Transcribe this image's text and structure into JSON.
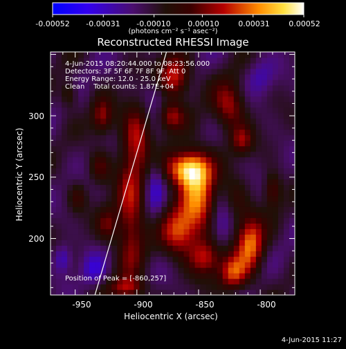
{
  "chart_data": {
    "type": "heatmap",
    "title": "Reconstructed RHESSI Image",
    "xlabel": "Heliocentric X (arcsec)",
    "ylabel": "Heliocentric Y (arcsec)",
    "xlim": [
      -970,
      -772
    ],
    "ylim": [
      154,
      352
    ],
    "x_ticks": [
      -950,
      -900,
      -850,
      -800
    ],
    "y_ticks": [
      200,
      250,
      300
    ],
    "colorbar": {
      "min": -0.00052,
      "max": 0.00052,
      "tick_values": [
        -0.00052,
        -0.00031,
        -0.0001,
        0.0001,
        0.00031,
        0.00052
      ],
      "tick_labels": [
        "-0.00052",
        "-0.00031",
        "-0.00010",
        "0.00010",
        "0.00031",
        "0.00052"
      ],
      "units": "(photons cm⁻² s⁻¹ asec⁻²)"
    },
    "annotations": [
      "4-Jun-2015 08:20:44.000 to 08:23:56.000",
      "Detectors: 3F 5F 6F 7F 8F 9F, Att 0",
      "Energy Range: 12.0 - 25.0 keV",
      "Clean    Total counts: 1.87E+04"
    ],
    "peak_label": "Position of Peak = [-860,257]",
    "peak": [
      -860,
      257
    ],
    "limb_line": [
      [
        -934,
        154
      ],
      [
        -876,
        352
      ]
    ],
    "sources": [
      {
        "x": -860,
        "y": 257,
        "sx": 12,
        "sy": 10,
        "amp": 0.00052
      },
      {
        "x": -850,
        "y": 235,
        "sx": 10,
        "sy": 22,
        "amp": 0.0004
      },
      {
        "x": -866,
        "y": 206,
        "sx": 10,
        "sy": 14,
        "amp": 0.00036
      },
      {
        "x": -845,
        "y": 185,
        "sx": 9,
        "sy": 10,
        "amp": 0.0003
      },
      {
        "x": -905,
        "y": 220,
        "sx": 8,
        "sy": 35,
        "amp": 0.00032
      },
      {
        "x": -900,
        "y": 285,
        "sx": 8,
        "sy": 18,
        "amp": 0.00028
      },
      {
        "x": -870,
        "y": 332,
        "sx": 9,
        "sy": 12,
        "amp": 0.00038
      },
      {
        "x": -872,
        "y": 300,
        "sx": 7,
        "sy": 8,
        "amp": 0.00026
      },
      {
        "x": -928,
        "y": 300,
        "sx": 6,
        "sy": 10,
        "amp": 0.00026
      },
      {
        "x": -930,
        "y": 258,
        "sx": 6,
        "sy": 9,
        "amp": 0.0002
      },
      {
        "x": -924,
        "y": 212,
        "sx": 6,
        "sy": 10,
        "amp": 0.0002
      },
      {
        "x": -908,
        "y": 160,
        "sx": 10,
        "sy": 6,
        "amp": 0.00026
      },
      {
        "x": -808,
        "y": 196,
        "sx": 8,
        "sy": 16,
        "amp": 0.00042
      },
      {
        "x": -822,
        "y": 172,
        "sx": 8,
        "sy": 10,
        "amp": 0.00036
      },
      {
        "x": -825,
        "y": 308,
        "sx": 9,
        "sy": 14,
        "amp": 0.0003
      },
      {
        "x": -815,
        "y": 280,
        "sx": 6,
        "sy": 8,
        "amp": 0.00024
      },
      {
        "x": -790,
        "y": 240,
        "sx": 5,
        "sy": 10,
        "amp": 0.00022
      },
      {
        "x": -955,
        "y": 318,
        "sx": 5,
        "sy": 8,
        "amp": 0.00018
      },
      {
        "x": -948,
        "y": 234,
        "sx": 5,
        "sy": 8,
        "amp": 0.00014
      },
      {
        "x": -820,
        "y": 232,
        "sx": 7,
        "sy": 12,
        "amp": 0.00012
      },
      {
        "x": -960,
        "y": 184,
        "sx": 5,
        "sy": 8,
        "amp": -0.00018
      },
      {
        "x": -935,
        "y": 175,
        "sx": 7,
        "sy": 9,
        "amp": -0.00016
      },
      {
        "x": -885,
        "y": 318,
        "sx": 8,
        "sy": 10,
        "amp": -0.0001
      },
      {
        "x": -832,
        "y": 212,
        "sx": 6,
        "sy": 14,
        "amp": -0.00014
      },
      {
        "x": -800,
        "y": 332,
        "sx": 8,
        "sy": 10,
        "amp": -0.00012
      },
      {
        "x": -885,
        "y": 245,
        "sx": 5,
        "sy": 20,
        "amp": -0.00014
      }
    ]
  },
  "footer": {
    "date": "4-Jun-2015 11:27"
  }
}
